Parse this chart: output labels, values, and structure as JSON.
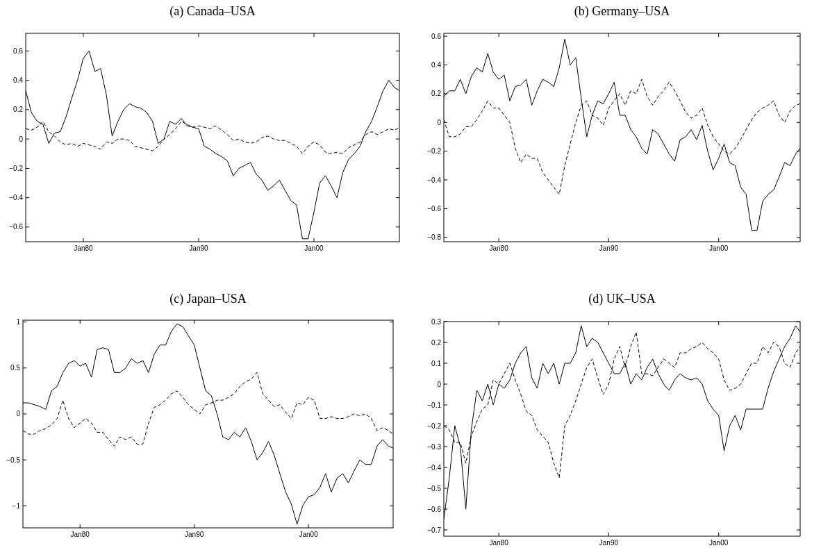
{
  "chart_data": [
    {
      "type": "line",
      "title": "(a) Canada–USA",
      "xlim": [
        "1975-01",
        "2007-06"
      ],
      "xticks": [
        {
          "value": "1980-01",
          "label": "Jan80"
        },
        {
          "value": "1990-01",
          "label": "Jan90"
        },
        {
          "value": "2000-01",
          "label": "Jan00"
        }
      ],
      "ylim": [
        -0.7,
        0.72
      ],
      "yticks": [
        -0.6,
        -0.4,
        -0.2,
        0,
        0.2,
        0.4,
        0.6
      ],
      "x": [
        "1975-01",
        "1975-07",
        "1976-01",
        "1976-07",
        "1977-01",
        "1977-07",
        "1978-01",
        "1978-07",
        "1979-01",
        "1979-07",
        "1980-01",
        "1980-07",
        "1981-01",
        "1981-07",
        "1982-01",
        "1982-07",
        "1983-01",
        "1983-07",
        "1984-01",
        "1984-07",
        "1985-01",
        "1985-07",
        "1986-01",
        "1986-07",
        "1987-01",
        "1987-07",
        "1988-01",
        "1988-07",
        "1989-01",
        "1989-07",
        "1990-01",
        "1990-07",
        "1991-01",
        "1991-07",
        "1992-01",
        "1992-07",
        "1993-01",
        "1993-07",
        "1994-01",
        "1994-07",
        "1995-01",
        "1995-07",
        "1996-01",
        "1996-07",
        "1997-01",
        "1997-07",
        "1998-01",
        "1998-07",
        "1999-01",
        "1999-07",
        "2000-01",
        "2000-07",
        "2001-01",
        "2001-07",
        "2002-01",
        "2002-07",
        "2003-01",
        "2003-07",
        "2004-01",
        "2004-07",
        "2005-01",
        "2005-07",
        "2006-01",
        "2006-07",
        "2007-01",
        "2007-06"
      ],
      "series": [
        {
          "color": "#000000",
          "line_style": "solid",
          "values": [
            0.33,
            0.18,
            0.12,
            0.1,
            -0.03,
            0.04,
            0.05,
            0.15,
            0.28,
            0.4,
            0.55,
            0.6,
            0.46,
            0.48,
            0.3,
            0.02,
            0.12,
            0.2,
            0.24,
            0.22,
            0.21,
            0.18,
            0.12,
            -0.03,
            0.0,
            0.12,
            0.1,
            0.14,
            0.09,
            0.08,
            0.07,
            -0.05,
            -0.07,
            -0.1,
            -0.12,
            -0.15,
            -0.25,
            -0.2,
            -0.18,
            -0.16,
            -0.24,
            -0.28,
            -0.35,
            -0.32,
            -0.28,
            -0.35,
            -0.42,
            -0.45,
            -0.68,
            -0.68,
            -0.5,
            -0.3,
            -0.25,
            -0.32,
            -0.4,
            -0.23,
            -0.14,
            -0.1,
            -0.05,
            0.05,
            0.12,
            0.22,
            0.33,
            0.4,
            0.35,
            0.33
          ]
        },
        {
          "color": "#000000",
          "line_style": "dashed",
          "values": [
            0.07,
            0.06,
            0.08,
            0.12,
            0.05,
            0.02,
            -0.02,
            -0.04,
            -0.03,
            -0.05,
            -0.03,
            -0.04,
            -0.05,
            -0.07,
            -0.02,
            -0.03,
            0.0,
            0.0,
            -0.01,
            -0.05,
            -0.06,
            -0.07,
            -0.08,
            -0.05,
            0.0,
            0.03,
            0.07,
            0.12,
            0.1,
            0.08,
            0.09,
            0.08,
            0.07,
            0.09,
            0.06,
            0.03,
            -0.01,
            0.0,
            -0.02,
            -0.03,
            -0.02,
            0.01,
            0.02,
            0.0,
            -0.01,
            -0.01,
            -0.03,
            -0.05,
            -0.1,
            -0.05,
            -0.02,
            -0.04,
            -0.09,
            -0.1,
            -0.09,
            -0.1,
            -0.06,
            -0.04,
            -0.02,
            0.03,
            0.05,
            0.03,
            0.05,
            0.07,
            0.06,
            0.08
          ]
        }
      ]
    },
    {
      "type": "line",
      "title": "(b) Germany–USA",
      "xlim": [
        "1975-01",
        "2007-06"
      ],
      "xticks": [
        {
          "value": "1980-01",
          "label": "Jan80"
        },
        {
          "value": "1990-01",
          "label": "Jan90"
        },
        {
          "value": "2000-01",
          "label": "Jan00"
        }
      ],
      "ylim": [
        -0.83,
        0.62
      ],
      "yticks": [
        -0.8,
        -0.6,
        -0.4,
        -0.2,
        0,
        0.2,
        0.4,
        0.6
      ],
      "x": [
        "1975-01",
        "1975-07",
        "1976-01",
        "1976-07",
        "1977-01",
        "1977-07",
        "1978-01",
        "1978-07",
        "1979-01",
        "1979-07",
        "1980-01",
        "1980-07",
        "1981-01",
        "1981-07",
        "1982-01",
        "1982-07",
        "1983-01",
        "1983-07",
        "1984-01",
        "1984-07",
        "1985-01",
        "1985-07",
        "1986-01",
        "1986-07",
        "1987-01",
        "1987-07",
        "1988-01",
        "1988-07",
        "1989-01",
        "1989-07",
        "1990-01",
        "1990-07",
        "1991-01",
        "1991-07",
        "1992-01",
        "1992-07",
        "1993-01",
        "1993-07",
        "1994-01",
        "1994-07",
        "1995-01",
        "1995-07",
        "1996-01",
        "1996-07",
        "1997-01",
        "1997-07",
        "1998-01",
        "1998-07",
        "1999-01",
        "1999-07",
        "2000-01",
        "2000-07",
        "2001-01",
        "2001-07",
        "2002-01",
        "2002-07",
        "2003-01",
        "2003-07",
        "2004-01",
        "2004-07",
        "2005-01",
        "2005-07",
        "2006-01",
        "2006-07",
        "2007-01",
        "2007-06"
      ],
      "series": [
        {
          "color": "#000000",
          "line_style": "solid",
          "values": [
            0.18,
            0.22,
            0.22,
            0.3,
            0.2,
            0.32,
            0.38,
            0.35,
            0.48,
            0.35,
            0.3,
            0.33,
            0.15,
            0.25,
            0.26,
            0.3,
            0.12,
            0.22,
            0.3,
            0.28,
            0.25,
            0.38,
            0.58,
            0.4,
            0.45,
            0.17,
            -0.1,
            0.05,
            0.15,
            0.13,
            0.2,
            0.28,
            0.05,
            0.05,
            -0.05,
            -0.1,
            -0.18,
            -0.22,
            -0.05,
            -0.08,
            -0.15,
            -0.22,
            -0.27,
            -0.12,
            -0.1,
            -0.05,
            -0.12,
            -0.02,
            -0.2,
            -0.33,
            -0.25,
            -0.15,
            -0.28,
            -0.3,
            -0.45,
            -0.5,
            -0.75,
            -0.75,
            -0.55,
            -0.5,
            -0.47,
            -0.38,
            -0.28,
            -0.3,
            -0.22,
            -0.18
          ]
        },
        {
          "color": "#000000",
          "line_style": "dashed",
          "values": [
            0.02,
            -0.1,
            -0.1,
            -0.08,
            -0.03,
            -0.03,
            0.02,
            0.08,
            0.15,
            0.1,
            0.1,
            0.05,
            0.0,
            -0.18,
            -0.28,
            -0.22,
            -0.25,
            -0.25,
            -0.35,
            -0.4,
            -0.45,
            -0.5,
            -0.3,
            -0.15,
            0.0,
            0.12,
            0.15,
            0.05,
            0.03,
            -0.02,
            0.1,
            0.15,
            0.2,
            0.12,
            0.22,
            0.2,
            0.3,
            0.18,
            0.12,
            0.18,
            0.22,
            0.28,
            0.22,
            0.15,
            0.07,
            0.03,
            0.05,
            0.1,
            -0.02,
            -0.1,
            -0.15,
            -0.2,
            -0.22,
            -0.18,
            -0.12,
            -0.05,
            0.02,
            0.07,
            0.1,
            0.12,
            0.15,
            0.05,
            0.0,
            0.08,
            0.12,
            0.13
          ]
        }
      ]
    },
    {
      "type": "line",
      "title": "(c) Japan–USA",
      "xlim": [
        "1975-01",
        "2007-06"
      ],
      "xticks": [
        {
          "value": "1980-01",
          "label": "Jan80"
        },
        {
          "value": "1990-01",
          "label": "Jan90"
        },
        {
          "value": "2000-01",
          "label": "Jan00"
        }
      ],
      "ylim": [
        -1.24,
        1.02
      ],
      "yticks": [
        -1,
        -0.5,
        0,
        0.5,
        1
      ],
      "x": [
        "1975-01",
        "1975-07",
        "1976-01",
        "1976-07",
        "1977-01",
        "1977-07",
        "1978-01",
        "1978-07",
        "1979-01",
        "1979-07",
        "1980-01",
        "1980-07",
        "1981-01",
        "1981-07",
        "1982-01",
        "1982-07",
        "1983-01",
        "1983-07",
        "1984-01",
        "1984-07",
        "1985-01",
        "1985-07",
        "1986-01",
        "1986-07",
        "1987-01",
        "1987-07",
        "1988-01",
        "1988-07",
        "1989-01",
        "1989-07",
        "1990-01",
        "1990-07",
        "1991-01",
        "1991-07",
        "1992-01",
        "1992-07",
        "1993-01",
        "1993-07",
        "1994-01",
        "1994-07",
        "1995-01",
        "1995-07",
        "1996-01",
        "1996-07",
        "1997-01",
        "1997-07",
        "1998-01",
        "1998-07",
        "1999-01",
        "1999-07",
        "2000-01",
        "2000-07",
        "2001-01",
        "2001-07",
        "2002-01",
        "2002-07",
        "2003-01",
        "2003-07",
        "2004-01",
        "2004-07",
        "2005-01",
        "2005-07",
        "2006-01",
        "2006-07",
        "2007-01",
        "2007-06"
      ],
      "series": [
        {
          "color": "#000000",
          "line_style": "solid",
          "values": [
            0.12,
            0.12,
            0.1,
            0.08,
            0.05,
            0.25,
            0.3,
            0.45,
            0.55,
            0.58,
            0.52,
            0.55,
            0.4,
            0.7,
            0.72,
            0.7,
            0.45,
            0.45,
            0.5,
            0.6,
            0.55,
            0.58,
            0.45,
            0.65,
            0.75,
            0.75,
            0.9,
            0.98,
            0.95,
            0.85,
            0.75,
            0.5,
            0.25,
            0.2,
            0.0,
            -0.25,
            -0.28,
            -0.2,
            -0.25,
            -0.15,
            -0.3,
            -0.5,
            -0.42,
            -0.3,
            -0.45,
            -0.65,
            -0.85,
            -0.98,
            -1.2,
            -1.0,
            -0.9,
            -0.88,
            -0.8,
            -0.65,
            -0.85,
            -0.7,
            -0.65,
            -0.75,
            -0.62,
            -0.5,
            -0.55,
            -0.55,
            -0.35,
            -0.28,
            -0.35,
            -0.37
          ]
        },
        {
          "color": "#000000",
          "line_style": "dashed",
          "values": [
            -0.18,
            -0.22,
            -0.22,
            -0.18,
            -0.16,
            -0.12,
            -0.05,
            0.15,
            -0.05,
            -0.15,
            -0.1,
            -0.05,
            -0.1,
            -0.2,
            -0.2,
            -0.28,
            -0.35,
            -0.25,
            -0.28,
            -0.25,
            -0.33,
            -0.33,
            -0.1,
            0.07,
            0.1,
            0.15,
            0.22,
            0.25,
            0.18,
            0.1,
            0.05,
            0.0,
            0.1,
            0.12,
            0.15,
            0.15,
            0.18,
            0.22,
            0.3,
            0.35,
            0.38,
            0.45,
            0.22,
            0.15,
            0.08,
            0.1,
            0.02,
            -0.05,
            0.12,
            0.1,
            0.18,
            0.15,
            -0.05,
            -0.05,
            -0.03,
            -0.05,
            -0.05,
            -0.03,
            0.0,
            -0.02,
            0.0,
            -0.05,
            -0.18,
            -0.15,
            -0.18,
            -0.22
          ]
        }
      ]
    },
    {
      "type": "line",
      "title": "(d) UK–USA",
      "xlim": [
        "1975-01",
        "2007-06"
      ],
      "xticks": [
        {
          "value": "1980-01",
          "label": "Jan80"
        },
        {
          "value": "1990-01",
          "label": "Jan90"
        },
        {
          "value": "2000-01",
          "label": "Jan00"
        }
      ],
      "ylim": [
        -0.73,
        0.3
      ],
      "yticks": [
        -0.7,
        -0.6,
        -0.5,
        -0.4,
        -0.3,
        -0.2,
        -0.1,
        0,
        0.1,
        0.2,
        0.3
      ],
      "x": [
        "1975-01",
        "1975-07",
        "1976-01",
        "1976-07",
        "1977-01",
        "1977-07",
        "1978-01",
        "1978-07",
        "1979-01",
        "1979-07",
        "1980-01",
        "1980-07",
        "1981-01",
        "1981-07",
        "1982-01",
        "1982-07",
        "1983-01",
        "1983-07",
        "1984-01",
        "1984-07",
        "1985-01",
        "1985-07",
        "1986-01",
        "1986-07",
        "1987-01",
        "1987-07",
        "1988-01",
        "1988-07",
        "1989-01",
        "1989-07",
        "1990-01",
        "1990-07",
        "1991-01",
        "1991-07",
        "1992-01",
        "1992-07",
        "1993-01",
        "1993-07",
        "1994-01",
        "1994-07",
        "1995-01",
        "1995-07",
        "1996-01",
        "1996-07",
        "1997-01",
        "1997-07",
        "1998-01",
        "1998-07",
        "1999-01",
        "1999-07",
        "2000-01",
        "2000-07",
        "2001-01",
        "2001-07",
        "2002-01",
        "2002-07",
        "2003-01",
        "2003-07",
        "2004-01",
        "2004-07",
        "2005-01",
        "2005-07",
        "2006-01",
        "2006-07",
        "2007-01",
        "2007-06"
      ],
      "series": [
        {
          "color": "#000000",
          "line_style": "solid",
          "values": [
            -0.65,
            -0.45,
            -0.2,
            -0.3,
            -0.6,
            -0.22,
            -0.03,
            -0.08,
            0.0,
            -0.1,
            0.0,
            -0.02,
            0.02,
            0.1,
            0.15,
            0.18,
            0.03,
            -0.02,
            0.1,
            0.05,
            0.1,
            0.0,
            0.1,
            0.1,
            0.15,
            0.28,
            0.18,
            0.22,
            0.2,
            0.15,
            0.1,
            0.05,
            0.05,
            0.1,
            0.0,
            0.05,
            0.02,
            0.08,
            0.12,
            0.05,
            0.0,
            -0.03,
            0.02,
            0.05,
            0.03,
            0.02,
            0.03,
            0.0,
            -0.08,
            -0.12,
            -0.15,
            -0.32,
            -0.2,
            -0.15,
            -0.22,
            -0.12,
            -0.12,
            -0.12,
            -0.12,
            -0.02,
            0.06,
            0.12,
            0.18,
            0.22,
            0.28,
            0.25
          ]
        },
        {
          "color": "#000000",
          "line_style": "dashed",
          "values": [
            -0.2,
            -0.22,
            -0.28,
            -0.28,
            -0.38,
            -0.25,
            -0.18,
            -0.12,
            -0.1,
            0.02,
            0.0,
            0.05,
            0.1,
            0.02,
            -0.05,
            -0.13,
            -0.15,
            -0.22,
            -0.25,
            -0.28,
            -0.38,
            -0.45,
            -0.2,
            -0.15,
            -0.08,
            0.0,
            0.08,
            0.12,
            0.03,
            -0.05,
            0.0,
            0.12,
            0.18,
            0.08,
            0.18,
            0.25,
            0.05,
            0.05,
            0.04,
            0.08,
            0.12,
            0.1,
            0.08,
            0.15,
            0.15,
            0.17,
            0.18,
            0.2,
            0.17,
            0.15,
            0.12,
            0.02,
            -0.03,
            -0.02,
            0.0,
            0.05,
            0.1,
            0.1,
            0.18,
            0.15,
            0.2,
            0.18,
            0.1,
            0.08,
            0.15,
            0.18
          ]
        }
      ]
    }
  ]
}
